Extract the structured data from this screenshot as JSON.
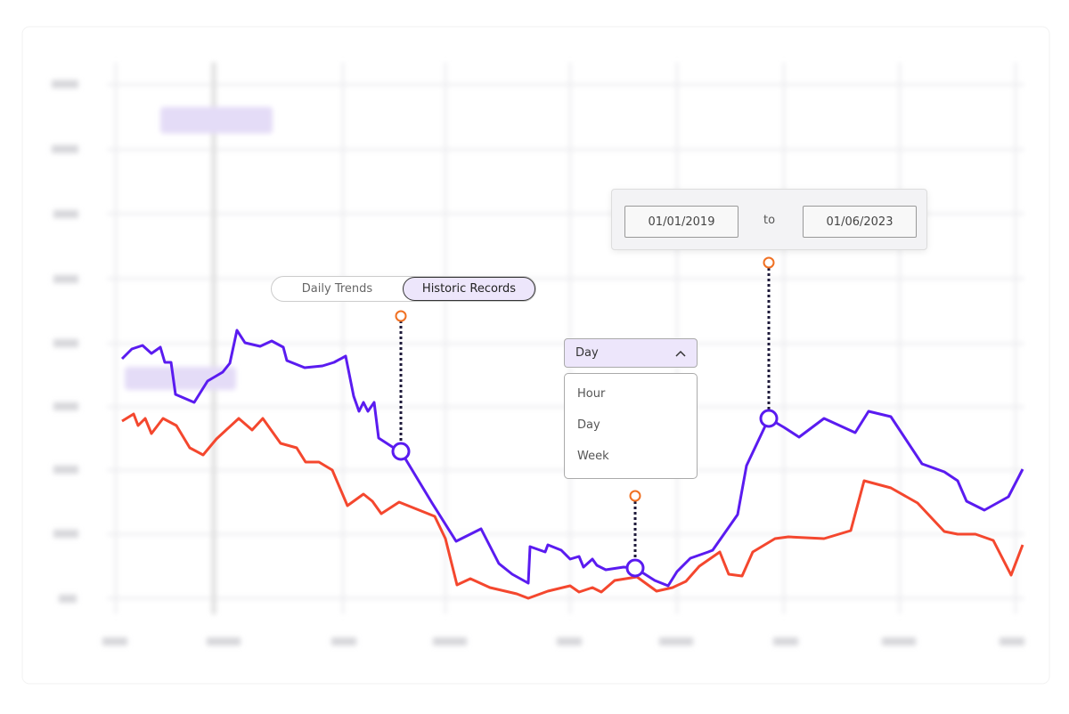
{
  "toggle": {
    "options": [
      "Daily Trends",
      "Historic Records"
    ],
    "active": "Historic Records"
  },
  "date_range": {
    "from": "01/01/2019",
    "separator": "to",
    "to": "01/06/2023"
  },
  "interval_select": {
    "selected": "Day",
    "options": [
      "Hour",
      "Day",
      "Week"
    ]
  }
}
